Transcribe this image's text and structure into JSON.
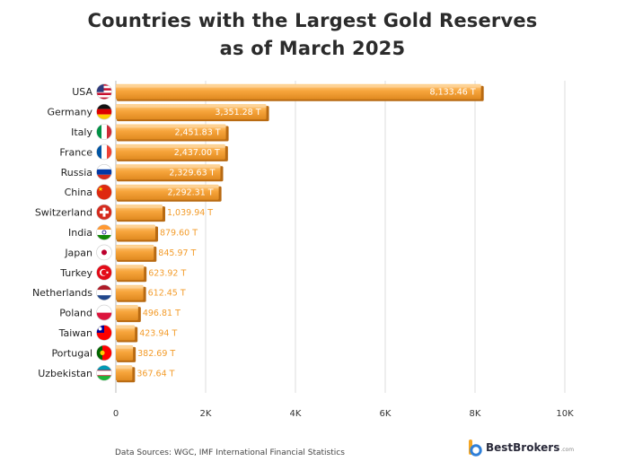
{
  "chart_data": {
    "type": "bar",
    "orientation": "horizontal",
    "title_lines": [
      "Countries with the Largest Gold Reserves",
      "as of March 2025"
    ],
    "categories": [
      "USA",
      "Germany",
      "Italy",
      "France",
      "Russia",
      "China",
      "Switzerland",
      "India",
      "Japan",
      "Turkey",
      "Netherlands",
      "Poland",
      "Taiwan",
      "Portugal",
      "Uzbekistan"
    ],
    "values": [
      8133.46,
      3351.28,
      2451.83,
      2437.0,
      2329.63,
      2292.31,
      1039.94,
      879.6,
      845.97,
      623.92,
      612.45,
      496.81,
      423.94,
      382.69,
      367.64
    ],
    "value_labels": [
      "8,133.46 T",
      "3,351.28 T",
      "2,451.83 T",
      "2,437.00 T",
      "2,329.63 T",
      "2,292.31 T",
      "1,039.94 T",
      "879.60 T",
      "845.97 T",
      "623.92 T",
      "612.45 T",
      "496.81 T",
      "423.94 T",
      "382.69 T",
      "367.64 T"
    ],
    "xlim": [
      0,
      10000
    ],
    "xticks": [
      0,
      2000,
      4000,
      6000,
      8000,
      10000
    ],
    "xtick_labels": [
      "0",
      "2K",
      "4K",
      "6K",
      "8K",
      "10K"
    ],
    "grid": "vertical",
    "colors": {
      "bar_top": "#ffd08a",
      "bar_mid": "#f7a53c",
      "bar_bottom": "#e08a20",
      "bar_shadow": "#b86a12",
      "label_inside": "#ffffff",
      "label_outside": "#f39c2b",
      "grid": "#dddddd"
    },
    "flags": [
      "us-flag-icon",
      "de-flag-icon",
      "it-flag-icon",
      "fr-flag-icon",
      "ru-flag-icon",
      "cn-flag-icon",
      "ch-flag-icon",
      "in-flag-icon",
      "jp-flag-icon",
      "tr-flag-icon",
      "nl-flag-icon",
      "pl-flag-icon",
      "tw-flag-icon",
      "pt-flag-icon",
      "uz-flag-icon"
    ]
  },
  "footer": {
    "source": "Data Sources: WGC, IMF International Financial Statistics",
    "brand": "BestBrokers",
    "brand_suffix": ".com",
    "brand_logo": "bestbrokers-logo-icon"
  }
}
